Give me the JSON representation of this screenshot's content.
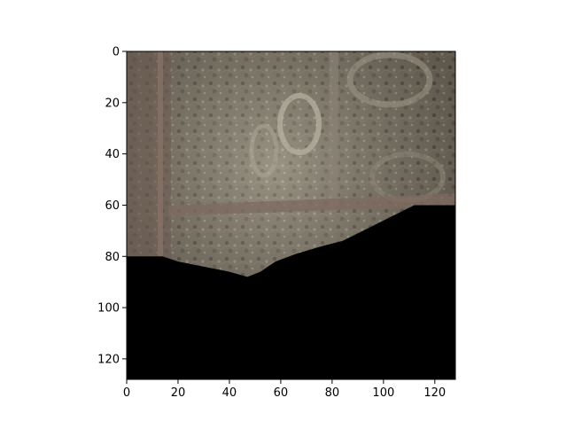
{
  "figure": {
    "background": "#ffffff",
    "image": {
      "description_colors": {
        "wall_base": "#6f685c",
        "wall_light": "#9a9482",
        "wall_dark": "#3f3a33",
        "trim": "#8a7466",
        "beam": "#7d6a60",
        "masked_region": "#000000"
      },
      "mask_boundary": [
        [
          0,
          80
        ],
        [
          14,
          80
        ],
        [
          20,
          82
        ],
        [
          30,
          84
        ],
        [
          40,
          86
        ],
        [
          47,
          88
        ],
        [
          52,
          86
        ],
        [
          58,
          82
        ],
        [
          66,
          79
        ],
        [
          76,
          76
        ],
        [
          84,
          74
        ],
        [
          96,
          68
        ],
        [
          104,
          64
        ],
        [
          112,
          60
        ],
        [
          128,
          60
        ]
      ],
      "extent": {
        "x": [
          0,
          128
        ],
        "y": [
          128,
          0
        ]
      }
    },
    "axes": {
      "xlim": [
        0,
        128
      ],
      "ylim": [
        128,
        0
      ],
      "x_ticks": [
        0,
        20,
        40,
        60,
        80,
        100,
        120
      ],
      "x_tick_labels": [
        "0",
        "20",
        "40",
        "60",
        "80",
        "100",
        "120"
      ],
      "y_ticks": [
        0,
        20,
        40,
        60,
        80,
        100,
        120
      ],
      "y_tick_labels": [
        "0",
        "20",
        "40",
        "60",
        "80",
        "100",
        "120"
      ],
      "axis_color": "#000000"
    }
  }
}
